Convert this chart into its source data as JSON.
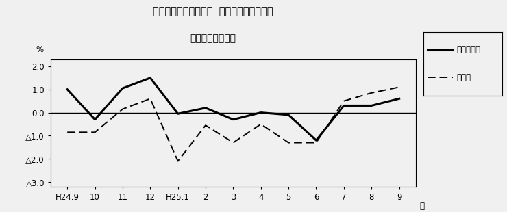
{
  "title_line1": "第３図　常用雇用指数  対前年同月比の推移",
  "title_line2": "（規模５人以上）",
  "xlabel": "月",
  "ylabel": "%",
  "x_labels": [
    "H24.9",
    "10",
    "11",
    "12",
    "H25.1",
    "2",
    "3",
    "4",
    "5",
    "6",
    "7",
    "8",
    "9"
  ],
  "solid_series": [
    1.0,
    -0.3,
    1.05,
    1.5,
    -0.05,
    0.2,
    -0.3,
    0.0,
    -0.1,
    -1.2,
    0.3,
    0.3,
    0.6
  ],
  "dashed_series": [
    -0.85,
    -0.85,
    0.15,
    0.6,
    -2.1,
    -0.55,
    -1.3,
    -0.5,
    -1.3,
    -1.3,
    0.5,
    0.85,
    1.1
  ],
  "ylim": [
    -3.2,
    2.3
  ],
  "yticks": [
    2.0,
    1.0,
    0.0,
    -1.0,
    -2.0,
    -3.0
  ],
  "ytick_labels": [
    "2.0",
    "1.0",
    "0.0",
    "△1.0",
    "△2.0",
    "△3.0"
  ],
  "legend_solid": "調査産業計",
  "legend_dashed": "製造業",
  "title_fontsize": 10.5,
  "tick_fontsize": 8.5,
  "legend_fontsize": 8.5,
  "line_color": "#000000",
  "background_color": "#f0f0f0"
}
